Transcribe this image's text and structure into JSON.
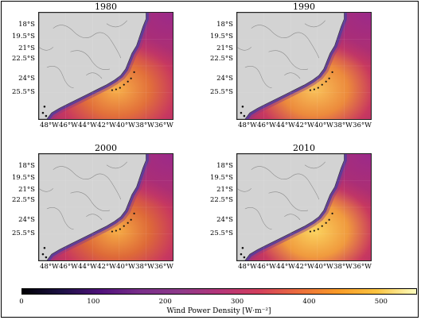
{
  "panels": [
    {
      "title": "1980",
      "variant": "v1980"
    },
    {
      "title": "1990",
      "variant": "v1990"
    },
    {
      "title": "2000",
      "variant": "v2000"
    },
    {
      "title": "2010",
      "variant": "v2010"
    }
  ],
  "lat_ticks": [
    "18°S",
    "19.5°S",
    "21°S",
    "22.5°S",
    "24°S",
    "25.5°S"
  ],
  "lon_ticks": [
    "48°W",
    "46°W",
    "44°W",
    "42°W",
    "40°W",
    "38°W",
    "36°W"
  ],
  "colorbar": {
    "title": "Wind Power Density [W·m⁻²]",
    "ticks": [
      "0",
      "100",
      "200",
      "300",
      "400",
      "500"
    ],
    "min": 0,
    "max": 550,
    "colors": [
      "#000004",
      "#1d1146",
      "#51127c",
      "#7a2f8a",
      "#8e3a8a",
      "#b5367a",
      "#d33f5d",
      "#ec6d3e",
      "#f99b28",
      "#fbc441",
      "#fcfdbf"
    ]
  },
  "colors": {
    "land": "#d3d3d3",
    "border": "#8a8a8a"
  }
}
